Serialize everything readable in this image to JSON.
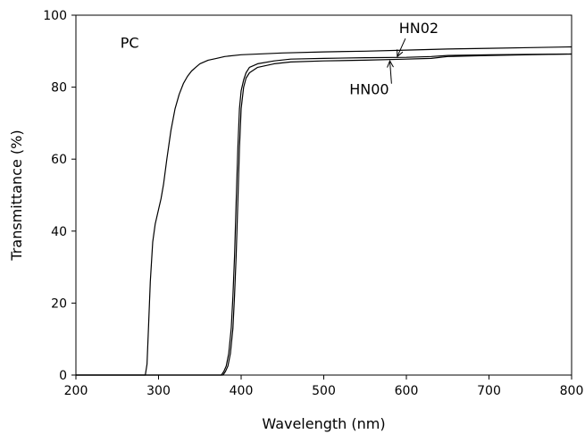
{
  "chart_data": {
    "type": "line",
    "title": "",
    "xlabel": "Wavelength (nm)",
    "ylabel": "Transmittance (%)",
    "xlim": [
      200,
      800
    ],
    "ylim": [
      0,
      100
    ],
    "xticks": [
      200,
      300,
      400,
      500,
      600,
      700,
      800
    ],
    "yticks": [
      0,
      20,
      40,
      60,
      80,
      100
    ],
    "grid": false,
    "legend": "none (series labelled directly on plot)",
    "series": [
      {
        "name": "PC",
        "color": "#000000",
        "x": [
          200,
          284,
          286,
          288,
          290,
          293,
          296,
          300,
          303,
          306,
          310,
          315,
          320,
          325,
          330,
          335,
          340,
          345,
          350,
          360,
          370,
          380,
          400,
          450,
          500,
          550,
          600,
          650,
          700,
          750,
          800
        ],
        "y": [
          0,
          0,
          3,
          14,
          26,
          37,
          42,
          46,
          49,
          53,
          60,
          68,
          74,
          78,
          81,
          83,
          84.5,
          85.5,
          86.5,
          87.5,
          88,
          88.5,
          89,
          89.5,
          89.8,
          90,
          90.3,
          90.6,
          90.8,
          91,
          91.2
        ],
        "label_text": "PC",
        "label_at": [
          265,
          91
        ]
      },
      {
        "name": "HN02",
        "color": "#000000",
        "x": [
          200,
          378,
          381,
          384,
          387,
          390,
          392,
          394,
          396,
          398,
          400,
          403,
          406,
          410,
          420,
          440,
          460,
          500,
          550,
          600,
          630,
          650,
          700,
          750,
          800
        ],
        "y": [
          0,
          0,
          1,
          2.5,
          6,
          13,
          22,
          33,
          48,
          63,
          74,
          80,
          82.5,
          84,
          85.5,
          86.5,
          87,
          87.3,
          87.5,
          87.8,
          88,
          88.5,
          88.8,
          89,
          89.2
        ],
        "label_text": "HN02",
        "label_at": [
          615,
          95
        ],
        "arrow_to": [
          589,
          88.5
        ]
      },
      {
        "name": "HN00",
        "color": "#000000",
        "x": [
          200,
          376,
          379,
          382,
          385,
          388,
          390,
          392,
          394,
          396,
          398,
          400,
          403,
          406,
          410,
          420,
          440,
          460,
          500,
          550,
          600,
          630,
          650,
          700,
          750,
          800
        ],
        "y": [
          0,
          0,
          1,
          2.5,
          6,
          13,
          22,
          33,
          48,
          63,
          74,
          79,
          82,
          84,
          85.5,
          86.5,
          87.3,
          87.8,
          88,
          88.2,
          88.3,
          88.5,
          88.8,
          89,
          89.1,
          89.2
        ],
        "label_text": "HN00",
        "label_at": [
          555,
          78
        ],
        "arrow_to": [
          580,
          87.3
        ]
      }
    ]
  }
}
